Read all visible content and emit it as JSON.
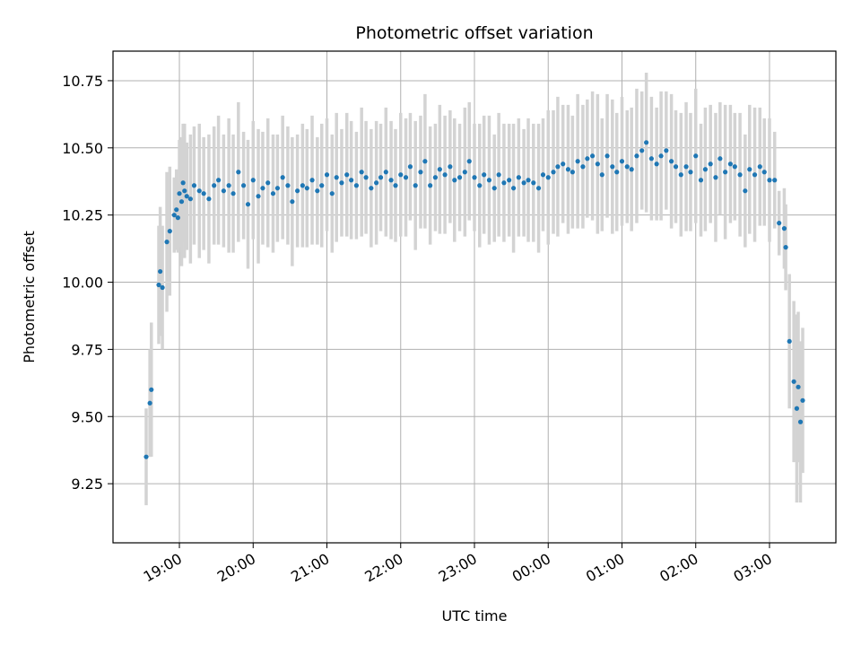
{
  "chart_data": {
    "type": "scatter",
    "title": "Photometric offset variation",
    "xlabel": "UTC time",
    "ylabel": "Photometric offset",
    "x_unit": "UTC hour (values after 24 wrap past midnight)",
    "xlim": [
      18.1,
      27.9
    ],
    "ylim": [
      9.03,
      10.86
    ],
    "grid": true,
    "yticks": [
      9.25,
      9.5,
      9.75,
      10.0,
      10.25,
      10.5,
      10.75
    ],
    "ytick_labels": [
      "9.25",
      "9.50",
      "9.75",
      "10.00",
      "10.25",
      "10.50",
      "10.75"
    ],
    "xticks": [
      19,
      20,
      21,
      22,
      23,
      24,
      25,
      26,
      27
    ],
    "xtick_labels": [
      "19:00",
      "20:00",
      "21:00",
      "22:00",
      "23:00",
      "00:00",
      "01:00",
      "02:00",
      "03:00"
    ],
    "colors": {
      "points": "#1f77b4",
      "errorbars": "#d3d3d3",
      "grid": "#b0b0b0"
    },
    "series": [
      {
        "marker": "point",
        "error": "vertical",
        "x": [
          18.55,
          18.6,
          18.62,
          18.72,
          18.74,
          18.77,
          18.83,
          18.87,
          18.93,
          18.96,
          18.98,
          19.0,
          19.03,
          19.05,
          19.07,
          19.1,
          19.15,
          19.2,
          19.27,
          19.33,
          19.4,
          19.47,
          19.53,
          19.6,
          19.67,
          19.73,
          19.8,
          19.87,
          19.93,
          20.0,
          20.07,
          20.13,
          20.2,
          20.27,
          20.33,
          20.4,
          20.47,
          20.53,
          20.6,
          20.67,
          20.73,
          20.8,
          20.87,
          20.93,
          21.0,
          21.07,
          21.13,
          21.2,
          21.27,
          21.33,
          21.4,
          21.47,
          21.53,
          21.6,
          21.67,
          21.73,
          21.8,
          21.87,
          21.93,
          22.0,
          22.07,
          22.13,
          22.2,
          22.27,
          22.33,
          22.4,
          22.47,
          22.53,
          22.6,
          22.67,
          22.73,
          22.8,
          22.87,
          22.93,
          23.0,
          23.07,
          23.13,
          23.2,
          23.27,
          23.33,
          23.4,
          23.47,
          23.53,
          23.6,
          23.67,
          23.73,
          23.8,
          23.87,
          23.93,
          24.0,
          24.07,
          24.13,
          24.2,
          24.27,
          24.33,
          24.4,
          24.47,
          24.53,
          24.6,
          24.67,
          24.73,
          24.8,
          24.87,
          24.93,
          25.0,
          25.07,
          25.13,
          25.2,
          25.27,
          25.33,
          25.4,
          25.47,
          25.53,
          25.6,
          25.67,
          25.73,
          25.8,
          25.87,
          25.93,
          26.0,
          26.07,
          26.13,
          26.2,
          26.27,
          26.33,
          26.4,
          26.47,
          26.53,
          26.6,
          26.67,
          26.73,
          26.8,
          26.87,
          26.93,
          27.0,
          27.07,
          27.13,
          27.2,
          27.22,
          27.27,
          27.33,
          27.37,
          27.39,
          27.42,
          27.45
        ],
        "y": [
          9.35,
          9.55,
          9.6,
          9.99,
          10.04,
          9.98,
          10.15,
          10.19,
          10.25,
          10.27,
          10.24,
          10.33,
          10.3,
          10.37,
          10.34,
          10.32,
          10.31,
          10.36,
          10.34,
          10.33,
          10.31,
          10.36,
          10.38,
          10.34,
          10.36,
          10.33,
          10.41,
          10.36,
          10.29,
          10.38,
          10.32,
          10.35,
          10.37,
          10.33,
          10.35,
          10.39,
          10.36,
          10.3,
          10.34,
          10.36,
          10.35,
          10.38,
          10.34,
          10.36,
          10.4,
          10.33,
          10.39,
          10.37,
          10.4,
          10.38,
          10.36,
          10.41,
          10.39,
          10.35,
          10.37,
          10.39,
          10.41,
          10.38,
          10.36,
          10.4,
          10.39,
          10.43,
          10.36,
          10.41,
          10.45,
          10.36,
          10.39,
          10.42,
          10.4,
          10.43,
          10.38,
          10.39,
          10.41,
          10.45,
          10.39,
          10.36,
          10.4,
          10.38,
          10.35,
          10.4,
          10.37,
          10.38,
          10.35,
          10.39,
          10.37,
          10.38,
          10.37,
          10.35,
          10.4,
          10.39,
          10.41,
          10.43,
          10.44,
          10.42,
          10.41,
          10.45,
          10.43,
          10.46,
          10.47,
          10.44,
          10.4,
          10.47,
          10.43,
          10.41,
          10.45,
          10.43,
          10.42,
          10.47,
          10.49,
          10.52,
          10.46,
          10.44,
          10.47,
          10.49,
          10.45,
          10.43,
          10.4,
          10.43,
          10.41,
          10.47,
          10.38,
          10.42,
          10.44,
          10.39,
          10.46,
          10.41,
          10.44,
          10.43,
          10.4,
          10.34,
          10.42,
          10.4,
          10.43,
          10.41,
          10.38,
          10.38,
          10.22,
          10.2,
          10.13,
          9.78,
          9.63,
          9.53,
          9.61,
          9.48,
          9.56
        ],
        "yerr": [
          0.18,
          0.2,
          0.25,
          0.22,
          0.24,
          0.23,
          0.26,
          0.24,
          0.14,
          0.15,
          0.13,
          0.2,
          0.24,
          0.22,
          0.25,
          0.2,
          0.24,
          0.22,
          0.25,
          0.21,
          0.24,
          0.22,
          0.24,
          0.21,
          0.25,
          0.22,
          0.26,
          0.2,
          0.24,
          0.22,
          0.25,
          0.21,
          0.24,
          0.22,
          0.2,
          0.23,
          0.22,
          0.24,
          0.21,
          0.23,
          0.22,
          0.24,
          0.2,
          0.23,
          0.21,
          0.22,
          0.24,
          0.2,
          0.23,
          0.22,
          0.2,
          0.24,
          0.21,
          0.22,
          0.23,
          0.2,
          0.24,
          0.22,
          0.21,
          0.23,
          0.22,
          0.2,
          0.24,
          0.21,
          0.25,
          0.22,
          0.2,
          0.24,
          0.22,
          0.21,
          0.23,
          0.2,
          0.24,
          0.22,
          0.2,
          0.23,
          0.22,
          0.24,
          0.2,
          0.23,
          0.22,
          0.21,
          0.24,
          0.22,
          0.2,
          0.23,
          0.22,
          0.24,
          0.21,
          0.25,
          0.23,
          0.26,
          0.22,
          0.24,
          0.21,
          0.25,
          0.23,
          0.22,
          0.24,
          0.26,
          0.21,
          0.23,
          0.25,
          0.22,
          0.24,
          0.21,
          0.23,
          0.25,
          0.22,
          0.26,
          0.23,
          0.21,
          0.24,
          0.22,
          0.25,
          0.21,
          0.23,
          0.24,
          0.22,
          0.25,
          0.21,
          0.23,
          0.22,
          0.24,
          0.21,
          0.25,
          0.22,
          0.2,
          0.23,
          0.21,
          0.24,
          0.25,
          0.22,
          0.2,
          0.23,
          0.18,
          0.12,
          0.15,
          0.16,
          0.25,
          0.3,
          0.35,
          0.28,
          0.3,
          0.27
        ]
      }
    ]
  }
}
